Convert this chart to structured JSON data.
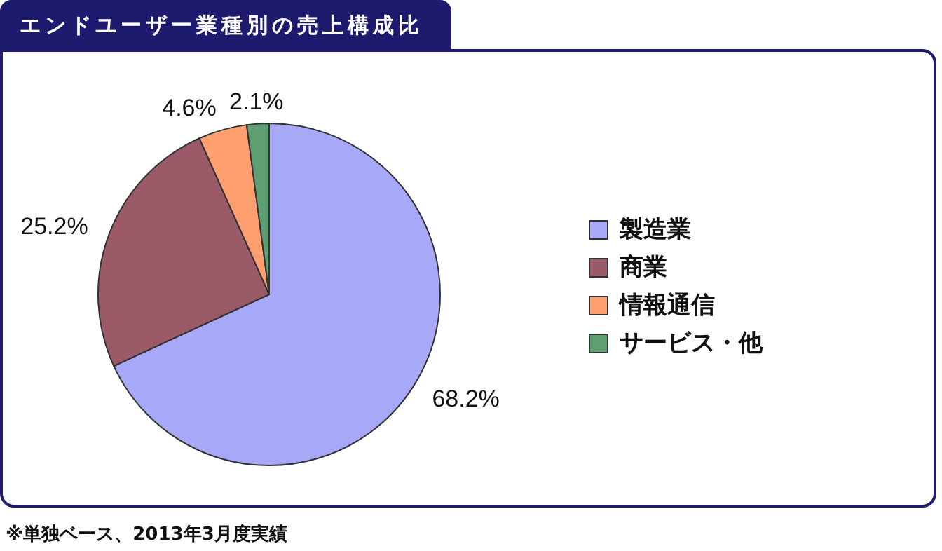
{
  "chart_data": {
    "type": "pie",
    "title": "エンドユーザー業種別の売上構成比",
    "categories": [
      "製造業",
      "商業",
      "情報通信",
      "サービス・他"
    ],
    "values": [
      68.2,
      25.2,
      4.6,
      2.1
    ],
    "colors": [
      "#a8a8f8",
      "#9a5a68",
      "#ff9e6e",
      "#5e9e72"
    ],
    "value_labels": [
      "68.2%",
      "25.2%",
      "4.6%",
      "2.1%"
    ],
    "legend": "right",
    "annotations": [
      "※単独ベース、2013年3月度実績"
    ]
  }
}
